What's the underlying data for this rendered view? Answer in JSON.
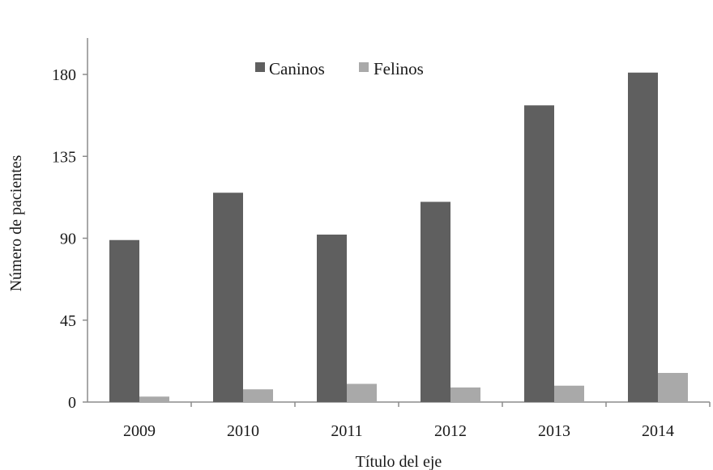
{
  "chart_data": {
    "type": "bar",
    "title": "",
    "xlabel": "Título del eje",
    "ylabel": "Número de pacientes",
    "categories": [
      "2009",
      "2010",
      "2011",
      "2012",
      "2013",
      "2014"
    ],
    "series": [
      {
        "name": "Caninos",
        "values": [
          89,
          115,
          92,
          110,
          163,
          181
        ],
        "color": "#5f5f5f"
      },
      {
        "name": "Felinos",
        "values": [
          3,
          7,
          10,
          8,
          9,
          16
        ],
        "color": "#a9a9a9"
      }
    ],
    "ylim": [
      0,
      200
    ],
    "yticks": [
      0,
      45,
      90,
      135,
      180
    ],
    "ytick_labels": [
      "0",
      "45",
      "90",
      "135",
      "180"
    ],
    "grid": false,
    "legend_position": "top-center",
    "axis_color": "#8c8c8c"
  }
}
